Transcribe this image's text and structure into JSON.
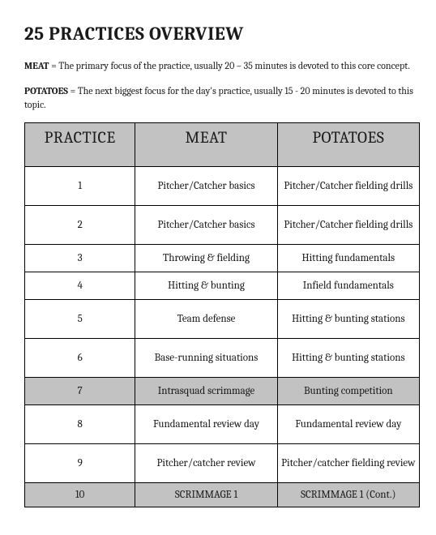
{
  "title": "25 PRACTICES OVERVIEW",
  "definitions": [
    {
      "term": "MEAT",
      "text": " = The primary focus of the practice, usually 20 – 35 minutes is devoted to this core concept."
    },
    {
      "term": "POTATOES",
      "text": " = The next biggest focus for the day's practice, usually 15 - 20 minutes is devoted to this topic."
    }
  ],
  "table": {
    "columns": [
      "PRACTICE",
      "MEAT",
      "POTATOES"
    ],
    "col_widths_pct": [
      28,
      36,
      36
    ],
    "header_bg": "#c2c2c2",
    "shaded_bg": "#c2c2c2",
    "border_color": "#000000",
    "header_fontsize": 20,
    "cell_fontsize": 13,
    "rows": [
      {
        "n": "1",
        "meat": "Pitcher/Catcher basics",
        "potatoes": "Pitcher/Catcher fielding drills",
        "shaded": false,
        "h": 48
      },
      {
        "n": "2",
        "meat": "Pitcher/Catcher basics",
        "potatoes": "Pitcher/Catcher fielding drills",
        "shaded": false,
        "h": 48
      },
      {
        "n": "3",
        "meat": "Throwing & fielding",
        "potatoes": "Hitting fundamentals",
        "shaded": false,
        "h": 34
      },
      {
        "n": "4",
        "meat": "Hitting & bunting",
        "potatoes": "Infield fundamentals",
        "shaded": false,
        "h": 34
      },
      {
        "n": "5",
        "meat": "Team defense",
        "potatoes": "Hitting & bunting stations",
        "shaded": false,
        "h": 48
      },
      {
        "n": "6",
        "meat": "Base-running situations",
        "potatoes": "Hitting & bunting stations",
        "shaded": false,
        "h": 48
      },
      {
        "n": "7",
        "meat": "Intrasquad scrimmage",
        "potatoes": "Bunting competition",
        "shaded": true,
        "h": 34
      },
      {
        "n": "8",
        "meat": "Fundamental review day",
        "potatoes": "Fundamental review day",
        "shaded": false,
        "h": 48
      },
      {
        "n": "9",
        "meat": "Pitcher/catcher review",
        "potatoes": "Pitcher/catcher fielding review",
        "shaded": false,
        "h": 48
      },
      {
        "n": "10",
        "meat": "SCRIMMAGE 1",
        "potatoes": "SCRIMMAGE 1 (Cont.)",
        "shaded": true,
        "h": 30
      }
    ]
  }
}
